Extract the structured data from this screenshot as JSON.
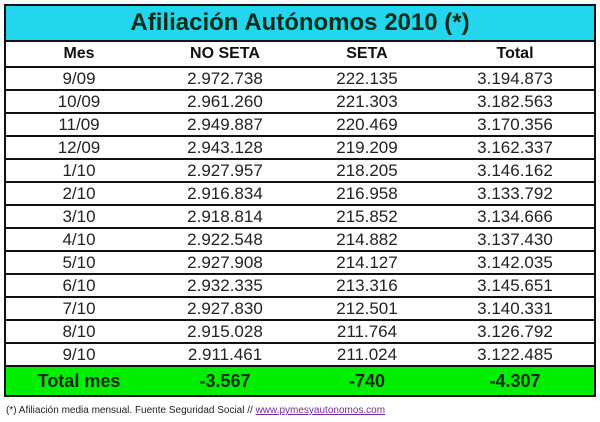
{
  "title": "Afiliación Autónomos 2010 (*)",
  "columns": [
    "Mes",
    "NO SETA",
    "SETA",
    "Total"
  ],
  "rows": [
    [
      "9/09",
      "2.972.738",
      "222.135",
      "3.194.873"
    ],
    [
      "10/09",
      "2.961.260",
      "221.303",
      "3.182.563"
    ],
    [
      "11/09",
      "2.949.887",
      "220.469",
      "3.170.356"
    ],
    [
      "12/09",
      "2.943.128",
      "219.209",
      "3.162.337"
    ],
    [
      "1/10",
      "2.927.957",
      "218.205",
      "3.146.162"
    ],
    [
      "2/10",
      "2.916.834",
      "216.958",
      "3.133.792"
    ],
    [
      "3/10",
      "2.918.814",
      "215.852",
      "3.134.666"
    ],
    [
      "4/10",
      "2.922.548",
      "214.882",
      "3.137.430"
    ],
    [
      "5/10",
      "2.927.908",
      "214.127",
      "3.142.035"
    ],
    [
      "6/10",
      "2.932.335",
      "213.316",
      "3.145.651"
    ],
    [
      "7/10",
      "2.927.830",
      "212.501",
      "3.140.331"
    ],
    [
      "8/10",
      "2.915.028",
      "211.764",
      "3.126.792"
    ],
    [
      "9/10",
      "2.911.461",
      "211.024",
      "3.122.485"
    ]
  ],
  "total_row": [
    "Total mes",
    "-3.567",
    "-740",
    "-4.307"
  ],
  "footnote": {
    "text": "(*) Afiliación media mensual. Fuente Seguridad Social // ",
    "link": "www.pymesyautonomos.com"
  },
  "colors": {
    "title_bg": "#22d6ee",
    "total_bg": "#00ee00"
  }
}
